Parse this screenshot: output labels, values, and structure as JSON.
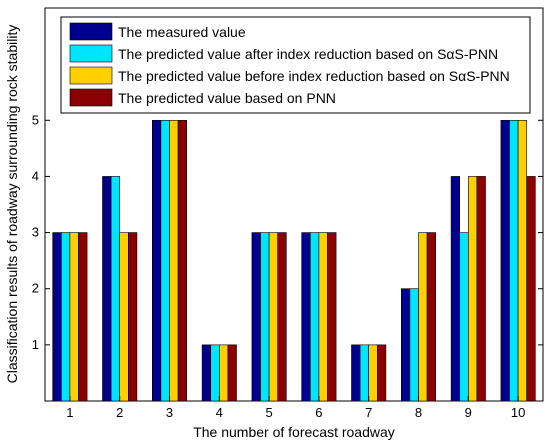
{
  "chart_data": {
    "type": "bar",
    "title": "",
    "xlabel": "The number of forecast roadway",
    "ylabel": "Classification results of roadway surrounding rock stability",
    "categories": [
      "1",
      "2",
      "3",
      "4",
      "5",
      "6",
      "7",
      "8",
      "9",
      "10"
    ],
    "ylim": [
      0,
      7
    ],
    "yticks": [
      "1",
      "2",
      "3",
      "4",
      "5"
    ],
    "ytick_values": [
      1,
      2,
      3,
      4,
      5
    ],
    "grid": false,
    "legend_position": "top-right",
    "series": [
      {
        "name": "The measured value",
        "color": "#00008f",
        "values": [
          3,
          4,
          5,
          1,
          3,
          3,
          1,
          2,
          4,
          5
        ]
      },
      {
        "name": "The predicted value after index reduction based on SαS-PNN",
        "color": "#00e5ff",
        "values": [
          3,
          4,
          5,
          1,
          3,
          3,
          1,
          2,
          3,
          5
        ]
      },
      {
        "name": "The predicted value before index reduction based on SαS-PNN",
        "color": "#ffcf00",
        "values": [
          3,
          3,
          5,
          1,
          3,
          3,
          1,
          3,
          4,
          5
        ]
      },
      {
        "name": "The predicted value  based on PNN",
        "color": "#8b0000",
        "values": [
          3,
          3,
          5,
          1,
          3,
          3,
          1,
          3,
          4,
          4
        ]
      }
    ]
  }
}
